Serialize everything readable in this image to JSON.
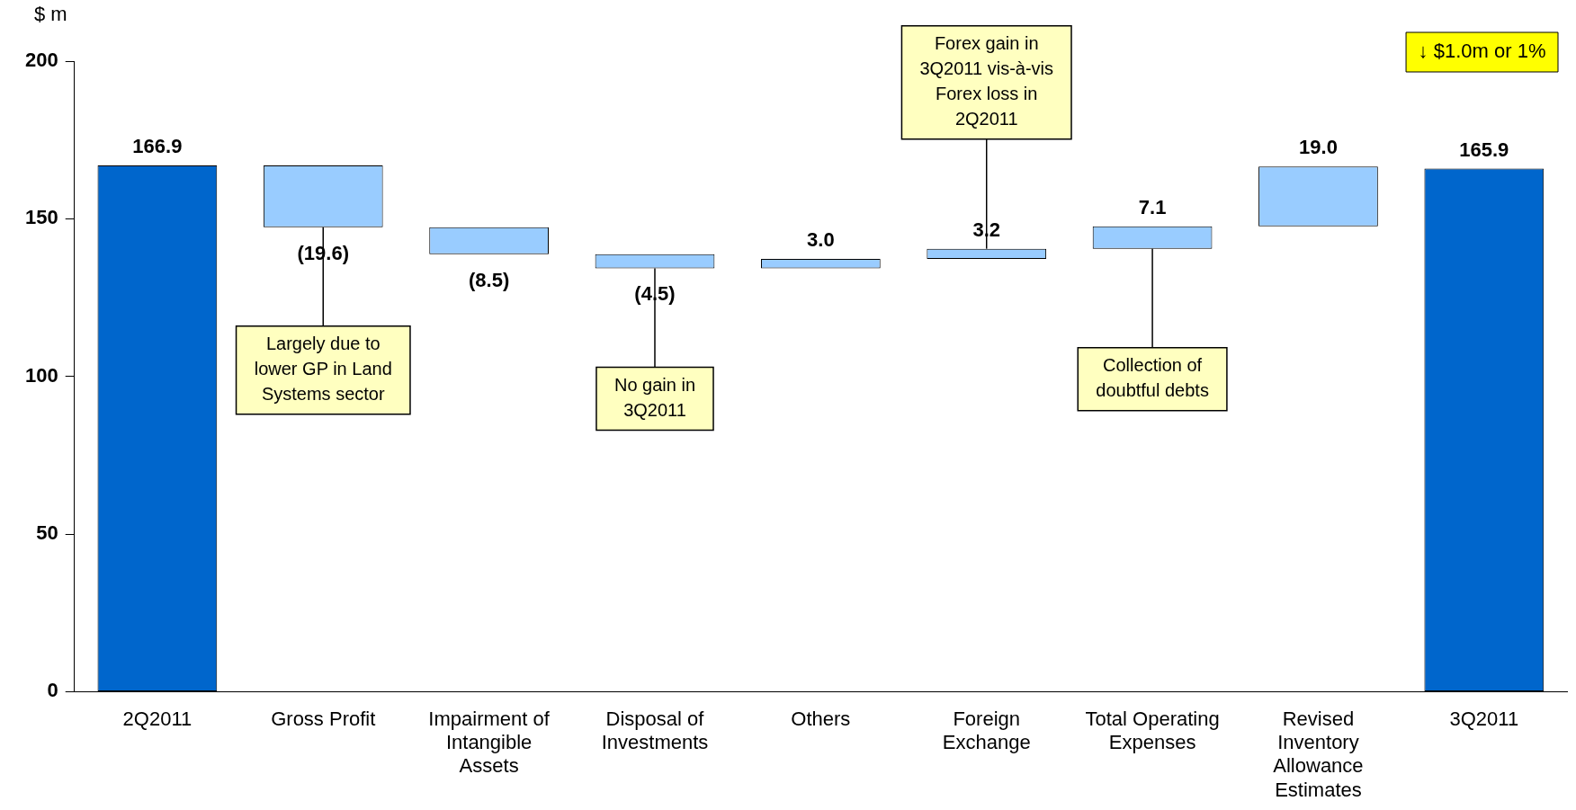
{
  "chart_data": {
    "type": "bar",
    "ylabel": "$ m",
    "categories": [
      "2Q2011",
      "Gross Profit",
      "Impairment of Intangible Assets",
      "Disposal of Investments",
      "Others",
      "Foreign Exchange",
      "Total Operating Expenses",
      "Revised Inventory Allowance Estimates",
      "3Q2011"
    ],
    "values": [
      166.9,
      -19.6,
      -8.5,
      -4.5,
      3.0,
      3.2,
      7.1,
      19.0,
      165.9
    ],
    "base": [
      0,
      166.9,
      147.3,
      138.8,
      134.3,
      137.3,
      140.5,
      147.6,
      0
    ],
    "colors": [
      "#0066cc",
      "#99ccff",
      "#99ccff",
      "#99ccff",
      "#99ccff",
      "#99ccff",
      "#99ccff",
      "#99ccff",
      "#0066cc"
    ],
    "value_labels": [
      "166.9",
      "(19.6)",
      "(8.5)",
      "(4.5)",
      "3.0",
      "3.2",
      "7.1",
      "19.0",
      "165.9"
    ],
    "ylim": [
      0,
      200
    ],
    "yticks": [
      0,
      50,
      100,
      150,
      200
    ],
    "grid": false,
    "legend": false,
    "annotations": [
      {
        "text": "Largely due to lower GP in Land Systems sector",
        "x": "Gross Profit",
        "y": 147.3
      },
      {
        "text": "No gain in 3Q2011",
        "x": "Disposal of Investments",
        "y": 134.3
      },
      {
        "text": "Forex gain in 3Q2011 vis-à-vis Forex loss in 2Q2011",
        "x": "Foreign Exchange",
        "y": 140.5
      },
      {
        "text": "Collection of doubtful debts",
        "x": "Total Operating Expenses",
        "y": 140.5
      },
      "↓ $1.0m or 1%"
    ]
  }
}
